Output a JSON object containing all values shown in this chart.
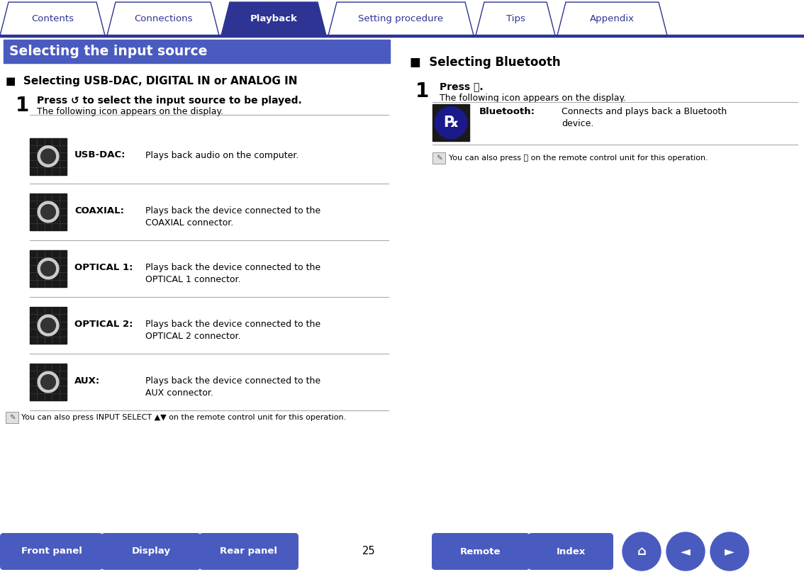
{
  "bg_color": "#ffffff",
  "tab_color_active": "#2d3494",
  "tab_color_inactive": "#ffffff",
  "tab_border_color": "#2d3494",
  "tab_text_active": "#ffffff",
  "tab_text_inactive": "#2d3494",
  "tabs": [
    "Contents",
    "Connections",
    "Playback",
    "Setting procedure",
    "Tips",
    "Appendix"
  ],
  "active_tab": 2,
  "header_bg": "#4a5bbf",
  "header_text": "Selecting the input source",
  "header_text_color": "#ffffff",
  "section1_title": "■  Selecting USB-DAC, DIGITAL IN or ANALOG IN",
  "section1_title_color": "#000000",
  "step1_num": "1",
  "step1_bold": "Press ↺ to select the input source to be played.",
  "step1_sub": "The following icon appears on the display.",
  "items": [
    {
      "label": "USB-DAC:",
      "desc": "Plays back audio on the computer."
    },
    {
      "label": "COAXIAL:",
      "desc": "Plays back the device connected to the\nCOAXIAL connector."
    },
    {
      "label": "OPTICAL 1:",
      "desc": "Plays back the device connected to the\nOPTICAL 1 connector."
    },
    {
      "label": "OPTICAL 2:",
      "desc": "Plays back the device connected to the\nOPTICAL 2 connector."
    },
    {
      "label": "AUX:",
      "desc": "Plays back the device connected to the\nAUX connector."
    }
  ],
  "note1": "You can also press INPUT SELECT ▲▼ on the remote control unit for this operation.",
  "section2_title": "■  Selecting Bluetooth",
  "step2_num": "1",
  "step2_bold": "Press ⓑ.",
  "step2_sub": "The following icon appears on the display.",
  "bt_label": "Bluetooth:",
  "bt_desc": "Connects and plays back a Bluetooth\ndevice.",
  "note2": "You can also press ⓑ on the remote control unit for this operation.",
  "bottom_buttons": [
    "Front panel",
    "Display",
    "Rear panel",
    "Remote",
    "Index"
  ],
  "page_num": "25",
  "divider_color": "#aaaaaa",
  "bottom_btn_color": "#4a5bbf",
  "bottom_btn_text": "#ffffff"
}
